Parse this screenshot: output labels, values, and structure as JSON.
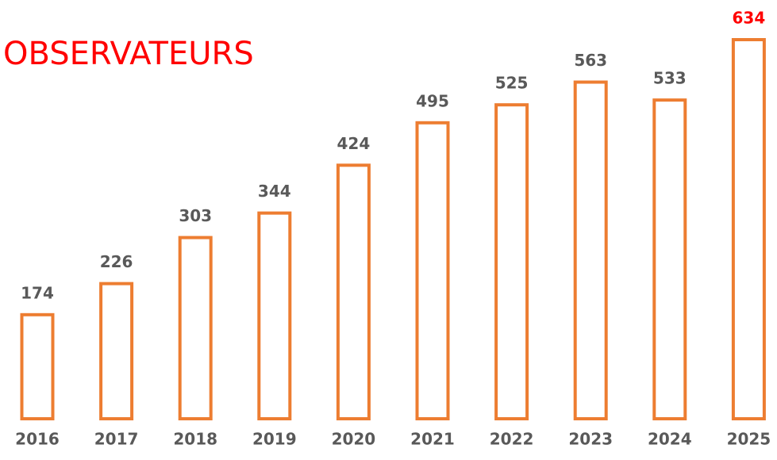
{
  "chart_data": {
    "type": "bar",
    "title": "OBSERVATEURS",
    "title_color": "#ff0000",
    "categories": [
      "2016",
      "2017",
      "2018",
      "2019",
      "2020",
      "2021",
      "2022",
      "2023",
      "2024",
      "2025"
    ],
    "values": [
      174,
      226,
      303,
      344,
      424,
      495,
      525,
      563,
      533,
      634
    ],
    "color": "#ed7d31",
    "label_colors": [
      "#595959",
      "#595959",
      "#595959",
      "#595959",
      "#595959",
      "#595959",
      "#595959",
      "#595959",
      "#595959",
      "#ff0000"
    ]
  }
}
